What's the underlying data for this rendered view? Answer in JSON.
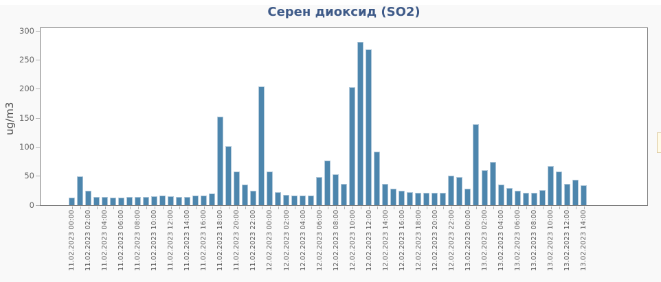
{
  "chart_data": {
    "type": "bar",
    "title": "Серен диоксид (SO2)",
    "ylabel": "ug/m3",
    "ylim": [
      0,
      300
    ],
    "yticks": [
      0,
      50,
      100,
      150,
      200,
      250,
      300
    ],
    "grid": false,
    "legend": "none",
    "bar_color": "#4d86ad",
    "title_color": "#3e5a88",
    "x_label_every": 2,
    "categories": [
      "11.02.2023 00:00",
      "11.02.2023 01:00",
      "11.02.2023 02:00",
      "11.02.2023 03:00",
      "11.02.2023 04:00",
      "11.02.2023 05:00",
      "11.02.2023 06:00",
      "11.02.2023 07:00",
      "11.02.2023 08:00",
      "11.02.2023 09:00",
      "11.02.2023 10:00",
      "11.02.2023 11:00",
      "11.02.2023 12:00",
      "11.02.2023 13:00",
      "11.02.2023 14:00",
      "11.02.2023 15:00",
      "11.02.2023 16:00",
      "11.02.2023 17:00",
      "11.02.2023 18:00",
      "11.02.2023 19:00",
      "11.02.2023 20:00",
      "11.02.2023 21:00",
      "11.02.2023 22:00",
      "11.02.2023 23:00",
      "12.02.2023 00:00",
      "12.02.2023 01:00",
      "12.02.2023 02:00",
      "12.02.2023 03:00",
      "12.02.2023 04:00",
      "12.02.2023 05:00",
      "12.02.2023 06:00",
      "12.02.2023 07:00",
      "12.02.2023 08:00",
      "12.02.2023 09:00",
      "12.02.2023 10:00",
      "12.02.2023 11:00",
      "12.02.2023 12:00",
      "12.02.2023 13:00",
      "12.02.2023 14:00",
      "12.02.2023 15:00",
      "12.02.2023 16:00",
      "12.02.2023 17:00",
      "12.02.2023 18:00",
      "12.02.2023 19:00",
      "12.02.2023 20:00",
      "12.02.2023 21:00",
      "12.02.2023 22:00",
      "12.02.2023 23:00",
      "13.02.2023 00:00",
      "13.02.2023 01:00",
      "13.02.2023 02:00",
      "13.02.2023 03:00",
      "13.02.2023 04:00",
      "13.02.2023 05:00",
      "13.02.2023 06:00",
      "13.02.2023 07:00",
      "13.02.2023 08:00",
      "13.02.2023 09:00",
      "13.02.2023 10:00",
      "13.02.2023 11:00",
      "13.02.2023 12:00",
      "13.02.2023 13:00",
      "13.02.2023 14:00"
    ],
    "values": [
      13,
      50,
      25,
      14,
      14,
      13,
      13,
      14,
      14,
      14,
      15,
      16,
      15,
      14,
      14,
      16,
      17,
      20,
      152,
      102,
      58,
      36,
      25,
      204,
      58,
      23,
      18,
      16,
      16,
      17,
      49,
      77,
      53,
      37,
      203,
      281,
      268,
      92,
      37,
      28,
      25,
      23,
      21,
      21,
      21,
      21,
      51,
      48,
      28,
      139,
      60,
      74,
      36,
      30,
      25,
      21,
      21,
      26,
      67,
      58,
      37,
      44,
      34
    ]
  }
}
